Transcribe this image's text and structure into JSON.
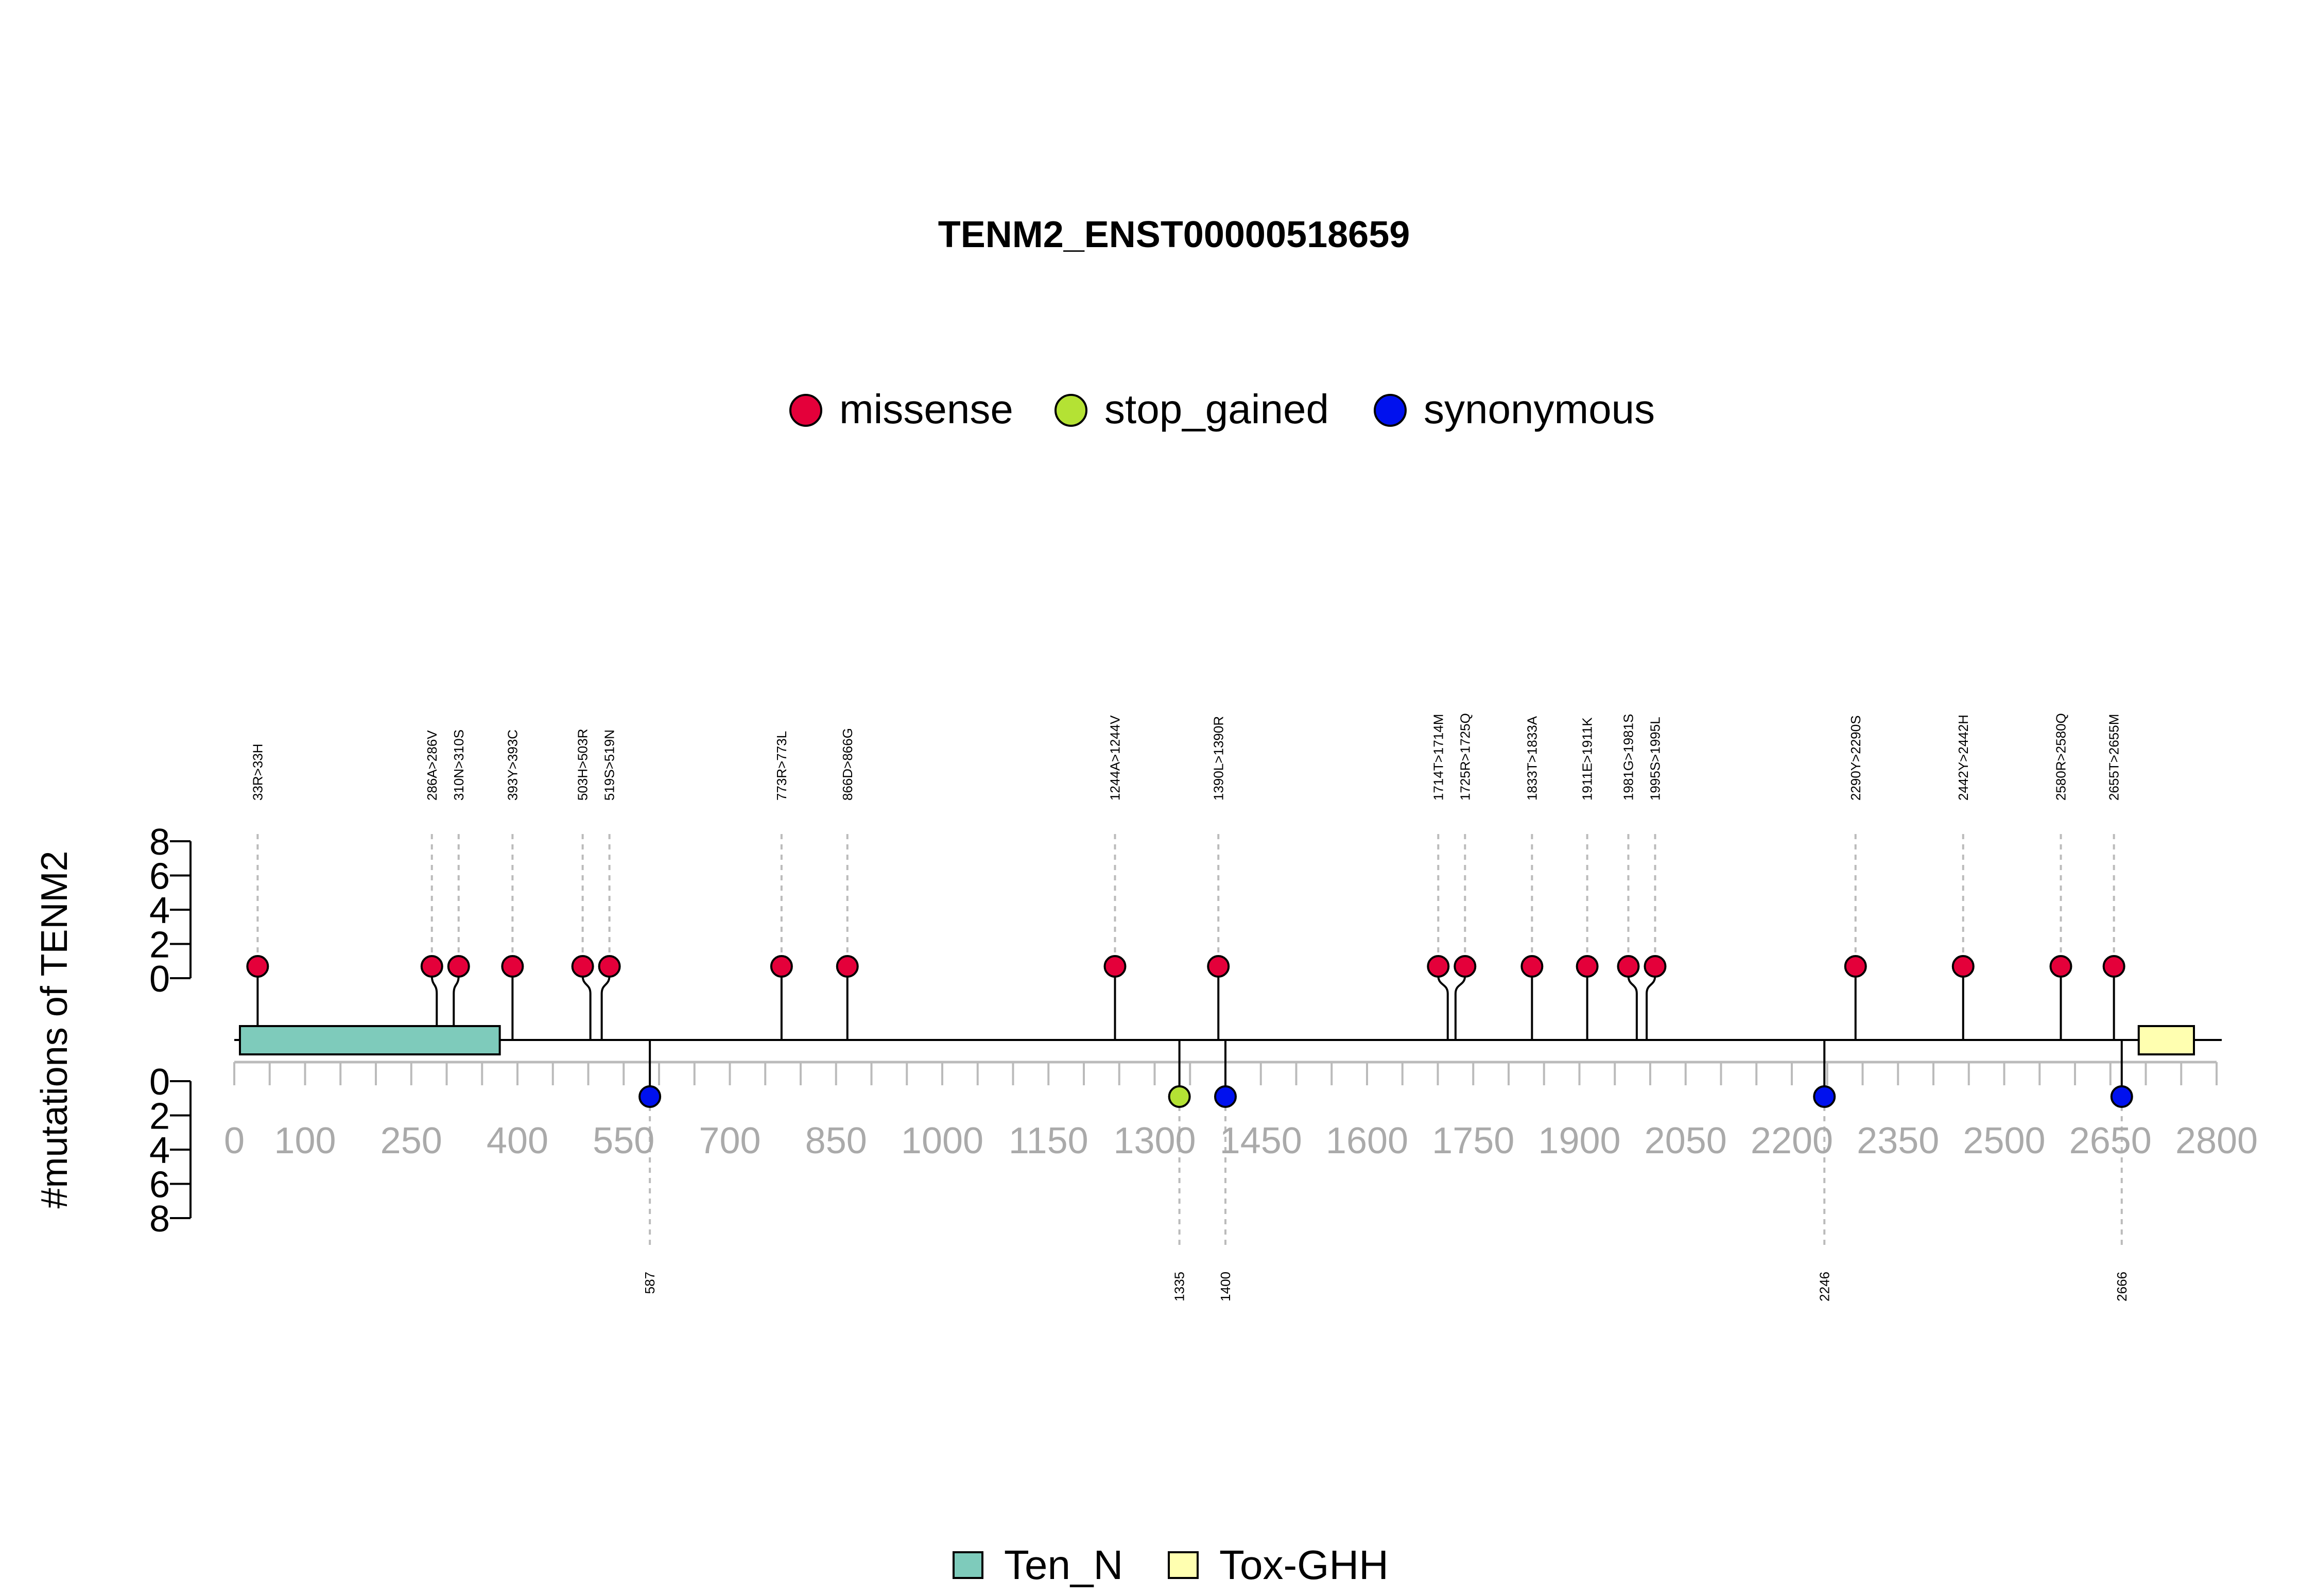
{
  "chart_data": {
    "type": "lollipop",
    "title": "TENM2_ENST00000518659",
    "ylabel": "#mutations of TENM2",
    "xlim": [
      0,
      2800
    ],
    "x_ticks": [
      0,
      100,
      250,
      400,
      550,
      700,
      850,
      1000,
      1150,
      1300,
      1450,
      1600,
      1750,
      1900,
      2050,
      2200,
      2350,
      2500,
      2650,
      2800
    ],
    "y_ticks": [
      0,
      2,
      4,
      6,
      8
    ],
    "ylim": [
      0,
      8
    ],
    "legend": {
      "placement": "top-center",
      "entries": [
        {
          "label": "missense",
          "color": "#e4003a"
        },
        {
          "label": "stop_gained",
          "color": "#b4e234"
        },
        {
          "label": "synonymous",
          "color": "#0011ee"
        }
      ]
    },
    "domain_legend": {
      "placement": "bottom-center",
      "entries": [
        {
          "label": "Ten_N",
          "color": "#7ecbbb"
        },
        {
          "label": "Tox-GHH",
          "color": "#ffffb0"
        }
      ]
    },
    "domains": [
      {
        "name": "Ten_N",
        "start": 8,
        "end": 375,
        "color": "#7ecbbb"
      },
      {
        "name": "Tox-GHH",
        "start": 2690,
        "end": 2768,
        "color": "#ffffb0"
      }
    ],
    "upper_mutations": [
      {
        "pos": 33,
        "label": "33R>33H",
        "type": "missense",
        "count": 1
      },
      {
        "pos": 286,
        "label": "286A>286V",
        "type": "missense",
        "count": 1
      },
      {
        "pos": 310,
        "label": "310N>310S",
        "type": "missense",
        "count": 1
      },
      {
        "pos": 393,
        "label": "393Y>393C",
        "type": "missense",
        "count": 1
      },
      {
        "pos": 503,
        "label": "503H>503R",
        "type": "missense",
        "count": 1
      },
      {
        "pos": 519,
        "label": "519S>519N",
        "type": "missense",
        "count": 1
      },
      {
        "pos": 773,
        "label": "773R>773L",
        "type": "missense",
        "count": 1
      },
      {
        "pos": 866,
        "label": "866D>866G",
        "type": "missense",
        "count": 1
      },
      {
        "pos": 1244,
        "label": "1244A>1244V",
        "type": "missense",
        "count": 1
      },
      {
        "pos": 1390,
        "label": "1390L>1390R",
        "type": "missense",
        "count": 1
      },
      {
        "pos": 1714,
        "label": "1714T>1714M",
        "type": "missense",
        "count": 1
      },
      {
        "pos": 1725,
        "label": "1725R>1725Q",
        "type": "missense",
        "count": 1
      },
      {
        "pos": 1833,
        "label": "1833T>1833A",
        "type": "missense",
        "count": 1
      },
      {
        "pos": 1911,
        "label": "1911E>1911K",
        "type": "missense",
        "count": 1
      },
      {
        "pos": 1981,
        "label": "1981G>1981S",
        "type": "missense",
        "count": 1
      },
      {
        "pos": 1995,
        "label": "1995S>1995L",
        "type": "missense",
        "count": 1
      },
      {
        "pos": 2290,
        "label": "2290Y>2290S",
        "type": "missense",
        "count": 1
      },
      {
        "pos": 2442,
        "label": "2442Y>2442H",
        "type": "missense",
        "count": 1
      },
      {
        "pos": 2580,
        "label": "2580R>2580Q",
        "type": "missense",
        "count": 1
      },
      {
        "pos": 2655,
        "label": "2655T>2655M",
        "type": "missense",
        "count": 1
      }
    ],
    "lower_mutations": [
      {
        "pos": 587,
        "label": "587",
        "type": "synonymous",
        "count": 1
      },
      {
        "pos": 1335,
        "label": "1335",
        "type": "stop_gained",
        "count": 1
      },
      {
        "pos": 1400,
        "label": "1400",
        "type": "synonymous",
        "count": 1
      },
      {
        "pos": 2246,
        "label": "2246",
        "type": "synonymous",
        "count": 1
      },
      {
        "pos": 2666,
        "label": "2666",
        "type": "synonymous",
        "count": 1
      }
    ]
  }
}
